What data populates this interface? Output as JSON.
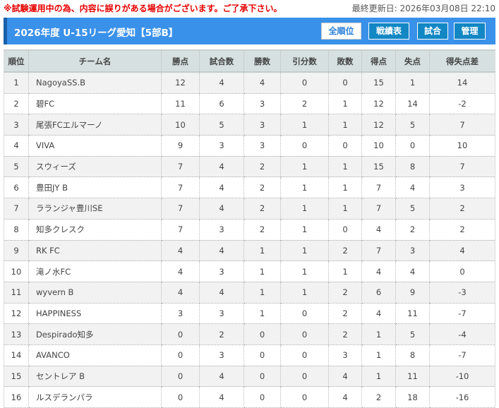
{
  "notice": "※試験運用中の為、内容に誤りがある場合がございます。ご了承下さい。",
  "last_updated": "最終更新日: 2026年03月08日 22:10",
  "header": {
    "title": "2026年度 U-15リーグ愛知【5部B】",
    "buttons": [
      "全順位",
      "戦績表",
      "試合",
      "管理"
    ],
    "active_button": "全順位"
  },
  "colors": {
    "title_bar": "#3a91ea",
    "notice": "#e60000",
    "button": "#1287c4"
  },
  "table": {
    "columns": [
      "順位",
      "チーム名",
      "勝点",
      "試合数",
      "勝数",
      "引分数",
      "敗数",
      "得点",
      "失点",
      "得失点差"
    ],
    "rows": [
      [
        "1",
        "NagoyaSS.B",
        "12",
        "4",
        "4",
        "0",
        "0",
        "15",
        "1",
        "14"
      ],
      [
        "2",
        "碧FC",
        "11",
        "6",
        "3",
        "2",
        "1",
        "12",
        "14",
        "-2"
      ],
      [
        "3",
        "尾張FCエルマーノ",
        "10",
        "5",
        "3",
        "1",
        "1",
        "12",
        "5",
        "7"
      ],
      [
        "4",
        "VIVA",
        "9",
        "3",
        "3",
        "0",
        "0",
        "10",
        "0",
        "10"
      ],
      [
        "5",
        "スウィーズ",
        "7",
        "4",
        "2",
        "1",
        "1",
        "15",
        "8",
        "7"
      ],
      [
        "6",
        "豊田JY B",
        "7",
        "4",
        "2",
        "1",
        "1",
        "7",
        "4",
        "3"
      ],
      [
        "7",
        "ラランジャ豊川SE",
        "7",
        "4",
        "2",
        "1",
        "1",
        "7",
        "5",
        "2"
      ],
      [
        "8",
        "知多クレスク",
        "7",
        "3",
        "2",
        "1",
        "0",
        "4",
        "2",
        "2"
      ],
      [
        "9",
        "RK FC",
        "4",
        "4",
        "1",
        "1",
        "2",
        "7",
        "3",
        "4"
      ],
      [
        "10",
        "滝ノ水FC",
        "4",
        "3",
        "1",
        "1",
        "1",
        "4",
        "4",
        "0"
      ],
      [
        "11",
        "wyvern B",
        "4",
        "4",
        "1",
        "1",
        "2",
        "6",
        "9",
        "-3"
      ],
      [
        "12",
        "HAPPINESS",
        "3",
        "3",
        "1",
        "0",
        "2",
        "4",
        "11",
        "-7"
      ],
      [
        "13",
        "Despirado知多",
        "0",
        "2",
        "0",
        "0",
        "2",
        "1",
        "5",
        "-4"
      ],
      [
        "14",
        "AVANCO",
        "0",
        "3",
        "0",
        "0",
        "3",
        "1",
        "8",
        "-7"
      ],
      [
        "15",
        "セントレア B",
        "0",
        "4",
        "0",
        "0",
        "4",
        "1",
        "11",
        "-10"
      ],
      [
        "16",
        "ルスデランパラ",
        "0",
        "4",
        "0",
        "0",
        "4",
        "2",
        "18",
        "-16"
      ]
    ]
  }
}
